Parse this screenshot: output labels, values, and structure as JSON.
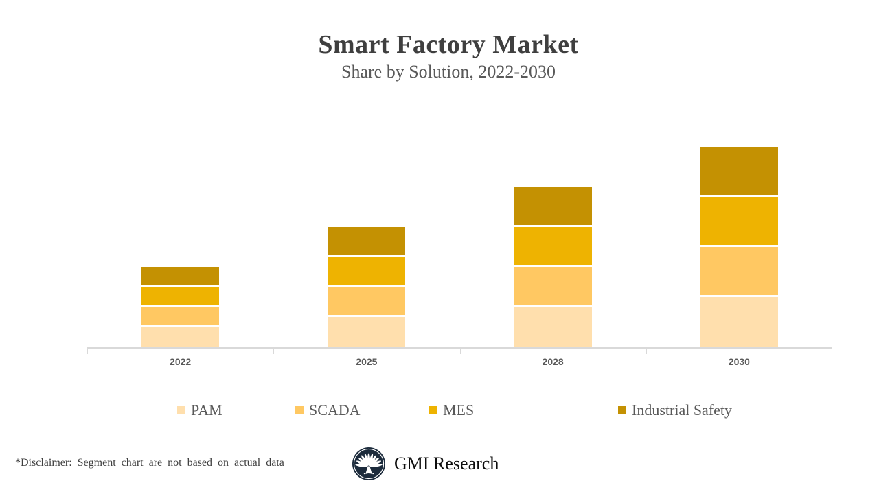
{
  "page": {
    "title": "Smart Factory Market",
    "subtitle": "Share by Solution, 2022-2030",
    "disclaimer": "*Disclaimer:  Segment chart are not based on actual data",
    "brand_name": "GMI Research"
  },
  "colors": {
    "title_text": "#3f3f3f",
    "subtitle_text": "#595959",
    "axis_line": "#d9d9d9",
    "axis_label_text": "#595959",
    "legend_text": "#595959",
    "pam": "#FFDFAD",
    "scada": "#FFC862",
    "mes": "#EEB301",
    "industrial_safety": "#C49102",
    "logo_navy": "#1c2b3c"
  },
  "chart_data": {
    "type": "bar",
    "stacked": true,
    "title": "Smart Factory Market",
    "subtitle": "Share by Solution, 2022-2030",
    "xlabel": "",
    "ylabel": "",
    "categories": [
      "2022",
      "2025",
      "2028",
      "2030"
    ],
    "series": [
      {
        "name": "PAM",
        "color": "#FFDFAD",
        "values": [
          5.0,
          7.5,
          10.0,
          12.5
        ]
      },
      {
        "name": "SCADA",
        "color": "#FFC862",
        "values": [
          5.0,
          7.5,
          10.0,
          12.5
        ]
      },
      {
        "name": "MES",
        "color": "#EEB301",
        "values": [
          5.0,
          7.5,
          10.0,
          12.5
        ]
      },
      {
        "name": "Industrial Safety",
        "color": "#C49102",
        "values": [
          5.0,
          7.5,
          10.0,
          12.5
        ]
      }
    ],
    "totals": [
      20,
      30,
      40,
      50
    ],
    "ylim": [
      0,
      60
    ],
    "grid": false,
    "y_axis_visible": false,
    "legend_position": "bottom",
    "note": "*Disclaimer:  Segment chart are not based on actual data"
  }
}
